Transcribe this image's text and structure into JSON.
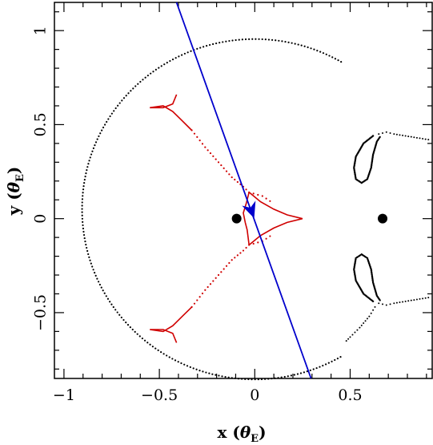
{
  "chart_data": {
    "type": "scatter",
    "title": "",
    "xlabel": {
      "prefix": "x (",
      "symbol": "θ",
      "sub": "E",
      "suffix": ")"
    },
    "ylabel": {
      "prefix": "y (",
      "symbol": "θ",
      "sub": "E",
      "suffix": ")"
    },
    "xlim": [
      -1.05,
      0.93
    ],
    "ylim": [
      -0.85,
      1.15
    ],
    "x_ticks": [
      {
        "value": -1,
        "label": "−1"
      },
      {
        "value": -0.5,
        "label": "−0.5"
      },
      {
        "value": 0,
        "label": "0"
      },
      {
        "value": 0.5,
        "label": "0.5"
      }
    ],
    "y_ticks": [
      {
        "value": -0.5,
        "label": "−0.5"
      },
      {
        "value": 0,
        "label": "0"
      },
      {
        "value": 0.5,
        "label": "0.5"
      },
      {
        "value": 1,
        "label": "1"
      }
    ],
    "grid": false,
    "lens_positions": [
      {
        "x": -0.095,
        "y": 0.0
      },
      {
        "x": 0.67,
        "y": 0.0
      }
    ],
    "critical_curve_color": "#000000",
    "caustic_color": "#d00000",
    "trajectory_color": "#0000cc",
    "trajectory": {
      "start": {
        "x": -0.41,
        "y": 1.15
      },
      "end": {
        "x": 0.295,
        "y": -0.85
      },
      "arrow_at": {
        "x": -0.02,
        "y": 0.05
      }
    },
    "critical_curve_outer": {
      "center": {
        "x": 0.0,
        "y": 0.05
      },
      "radius": 0.905,
      "arc_deg": [
        -60,
        60
      ]
    },
    "critical_curve_inner_lobes": [
      {
        "points": [
          [
            0.62,
            0.44
          ],
          [
            0.57,
            0.4
          ],
          [
            0.53,
            0.33
          ],
          [
            0.52,
            0.27
          ],
          [
            0.53,
            0.21
          ],
          [
            0.56,
            0.19
          ],
          [
            0.59,
            0.21
          ],
          [
            0.61,
            0.27
          ],
          [
            0.62,
            0.34
          ],
          [
            0.64,
            0.41
          ],
          [
            0.66,
            0.44
          ]
        ]
      },
      {
        "points": [
          [
            0.62,
            -0.44
          ],
          [
            0.57,
            -0.4
          ],
          [
            0.53,
            -0.33
          ],
          [
            0.52,
            -0.27
          ],
          [
            0.53,
            -0.21
          ],
          [
            0.56,
            -0.19
          ],
          [
            0.59,
            -0.21
          ],
          [
            0.61,
            -0.27
          ],
          [
            0.62,
            -0.34
          ],
          [
            0.64,
            -0.41
          ],
          [
            0.66,
            -0.44
          ]
        ]
      }
    ],
    "critical_curve_right_tails": [
      {
        "points": [
          [
            0.65,
            0.45
          ],
          [
            0.69,
            0.46
          ],
          [
            0.73,
            0.45
          ],
          [
            0.79,
            0.44
          ],
          [
            0.85,
            0.43
          ],
          [
            0.91,
            0.42
          ],
          [
            0.93,
            0.41
          ]
        ]
      },
      {
        "points": [
          [
            0.65,
            -0.45
          ],
          [
            0.69,
            -0.46
          ],
          [
            0.73,
            -0.45
          ],
          [
            0.79,
            -0.44
          ],
          [
            0.85,
            -0.43
          ],
          [
            0.91,
            -0.42
          ],
          [
            0.93,
            -0.41
          ]
        ]
      }
    ],
    "critical_curve_lower_right": [
      {
        "points": [
          [
            0.63,
            -0.47
          ],
          [
            0.6,
            -0.52
          ],
          [
            0.55,
            -0.58
          ],
          [
            0.5,
            -0.63
          ],
          [
            0.47,
            -0.66
          ]
        ]
      }
    ],
    "caustic_central": {
      "points": [
        [
          -0.03,
          0.14
        ],
        [
          0.03,
          0.09
        ],
        [
          0.1,
          0.05
        ],
        [
          0.17,
          0.02
        ],
        [
          0.25,
          0.0
        ],
        [
          0.17,
          -0.02
        ],
        [
          0.1,
          -0.05
        ],
        [
          0.03,
          -0.09
        ],
        [
          -0.03,
          -0.14
        ]
      ]
    },
    "caustic_left": {
      "points": [
        [
          -0.03,
          0.14
        ],
        [
          -0.045,
          0.08
        ],
        [
          -0.06,
          0.03
        ],
        [
          -0.05,
          -0.02
        ],
        [
          -0.04,
          -0.06
        ],
        [
          -0.03,
          -0.14
        ]
      ]
    },
    "caustic_top_triangle": {
      "points": [
        [
          -0.41,
          0.66
        ],
        [
          -0.43,
          0.61
        ],
        [
          -0.48,
          0.59
        ],
        [
          -0.55,
          0.59
        ],
        [
          -0.48,
          0.6
        ],
        [
          -0.43,
          0.57
        ],
        [
          -0.38,
          0.52
        ],
        [
          -0.33,
          0.47
        ]
      ]
    },
    "caustic_bottom_triangle": {
      "points": [
        [
          -0.41,
          -0.66
        ],
        [
          -0.43,
          -0.61
        ],
        [
          -0.48,
          -0.59
        ],
        [
          -0.55,
          -0.59
        ],
        [
          -0.48,
          -0.6
        ],
        [
          -0.43,
          -0.57
        ],
        [
          -0.38,
          -0.52
        ],
        [
          -0.33,
          -0.47
        ]
      ]
    },
    "caustic_dotted_connectors": [
      {
        "points": [
          [
            -0.33,
            0.47
          ],
          [
            -0.26,
            0.38
          ],
          [
            -0.19,
            0.3
          ],
          [
            -0.12,
            0.22
          ],
          [
            -0.06,
            0.17
          ],
          [
            -0.03,
            0.14
          ]
        ]
      },
      {
        "points": [
          [
            -0.33,
            -0.47
          ],
          [
            -0.26,
            -0.38
          ],
          [
            -0.19,
            -0.3
          ],
          [
            -0.12,
            -0.22
          ],
          [
            -0.06,
            -0.17
          ],
          [
            -0.03,
            -0.14
          ]
        ]
      },
      {
        "points": [
          [
            -0.03,
            0.14
          ],
          [
            0.04,
            0.12
          ],
          [
            0.1,
            0.08
          ]
        ]
      },
      {
        "points": [
          [
            -0.03,
            -0.14
          ],
          [
            0.04,
            -0.12
          ],
          [
            0.1,
            -0.08
          ]
        ]
      }
    ]
  }
}
